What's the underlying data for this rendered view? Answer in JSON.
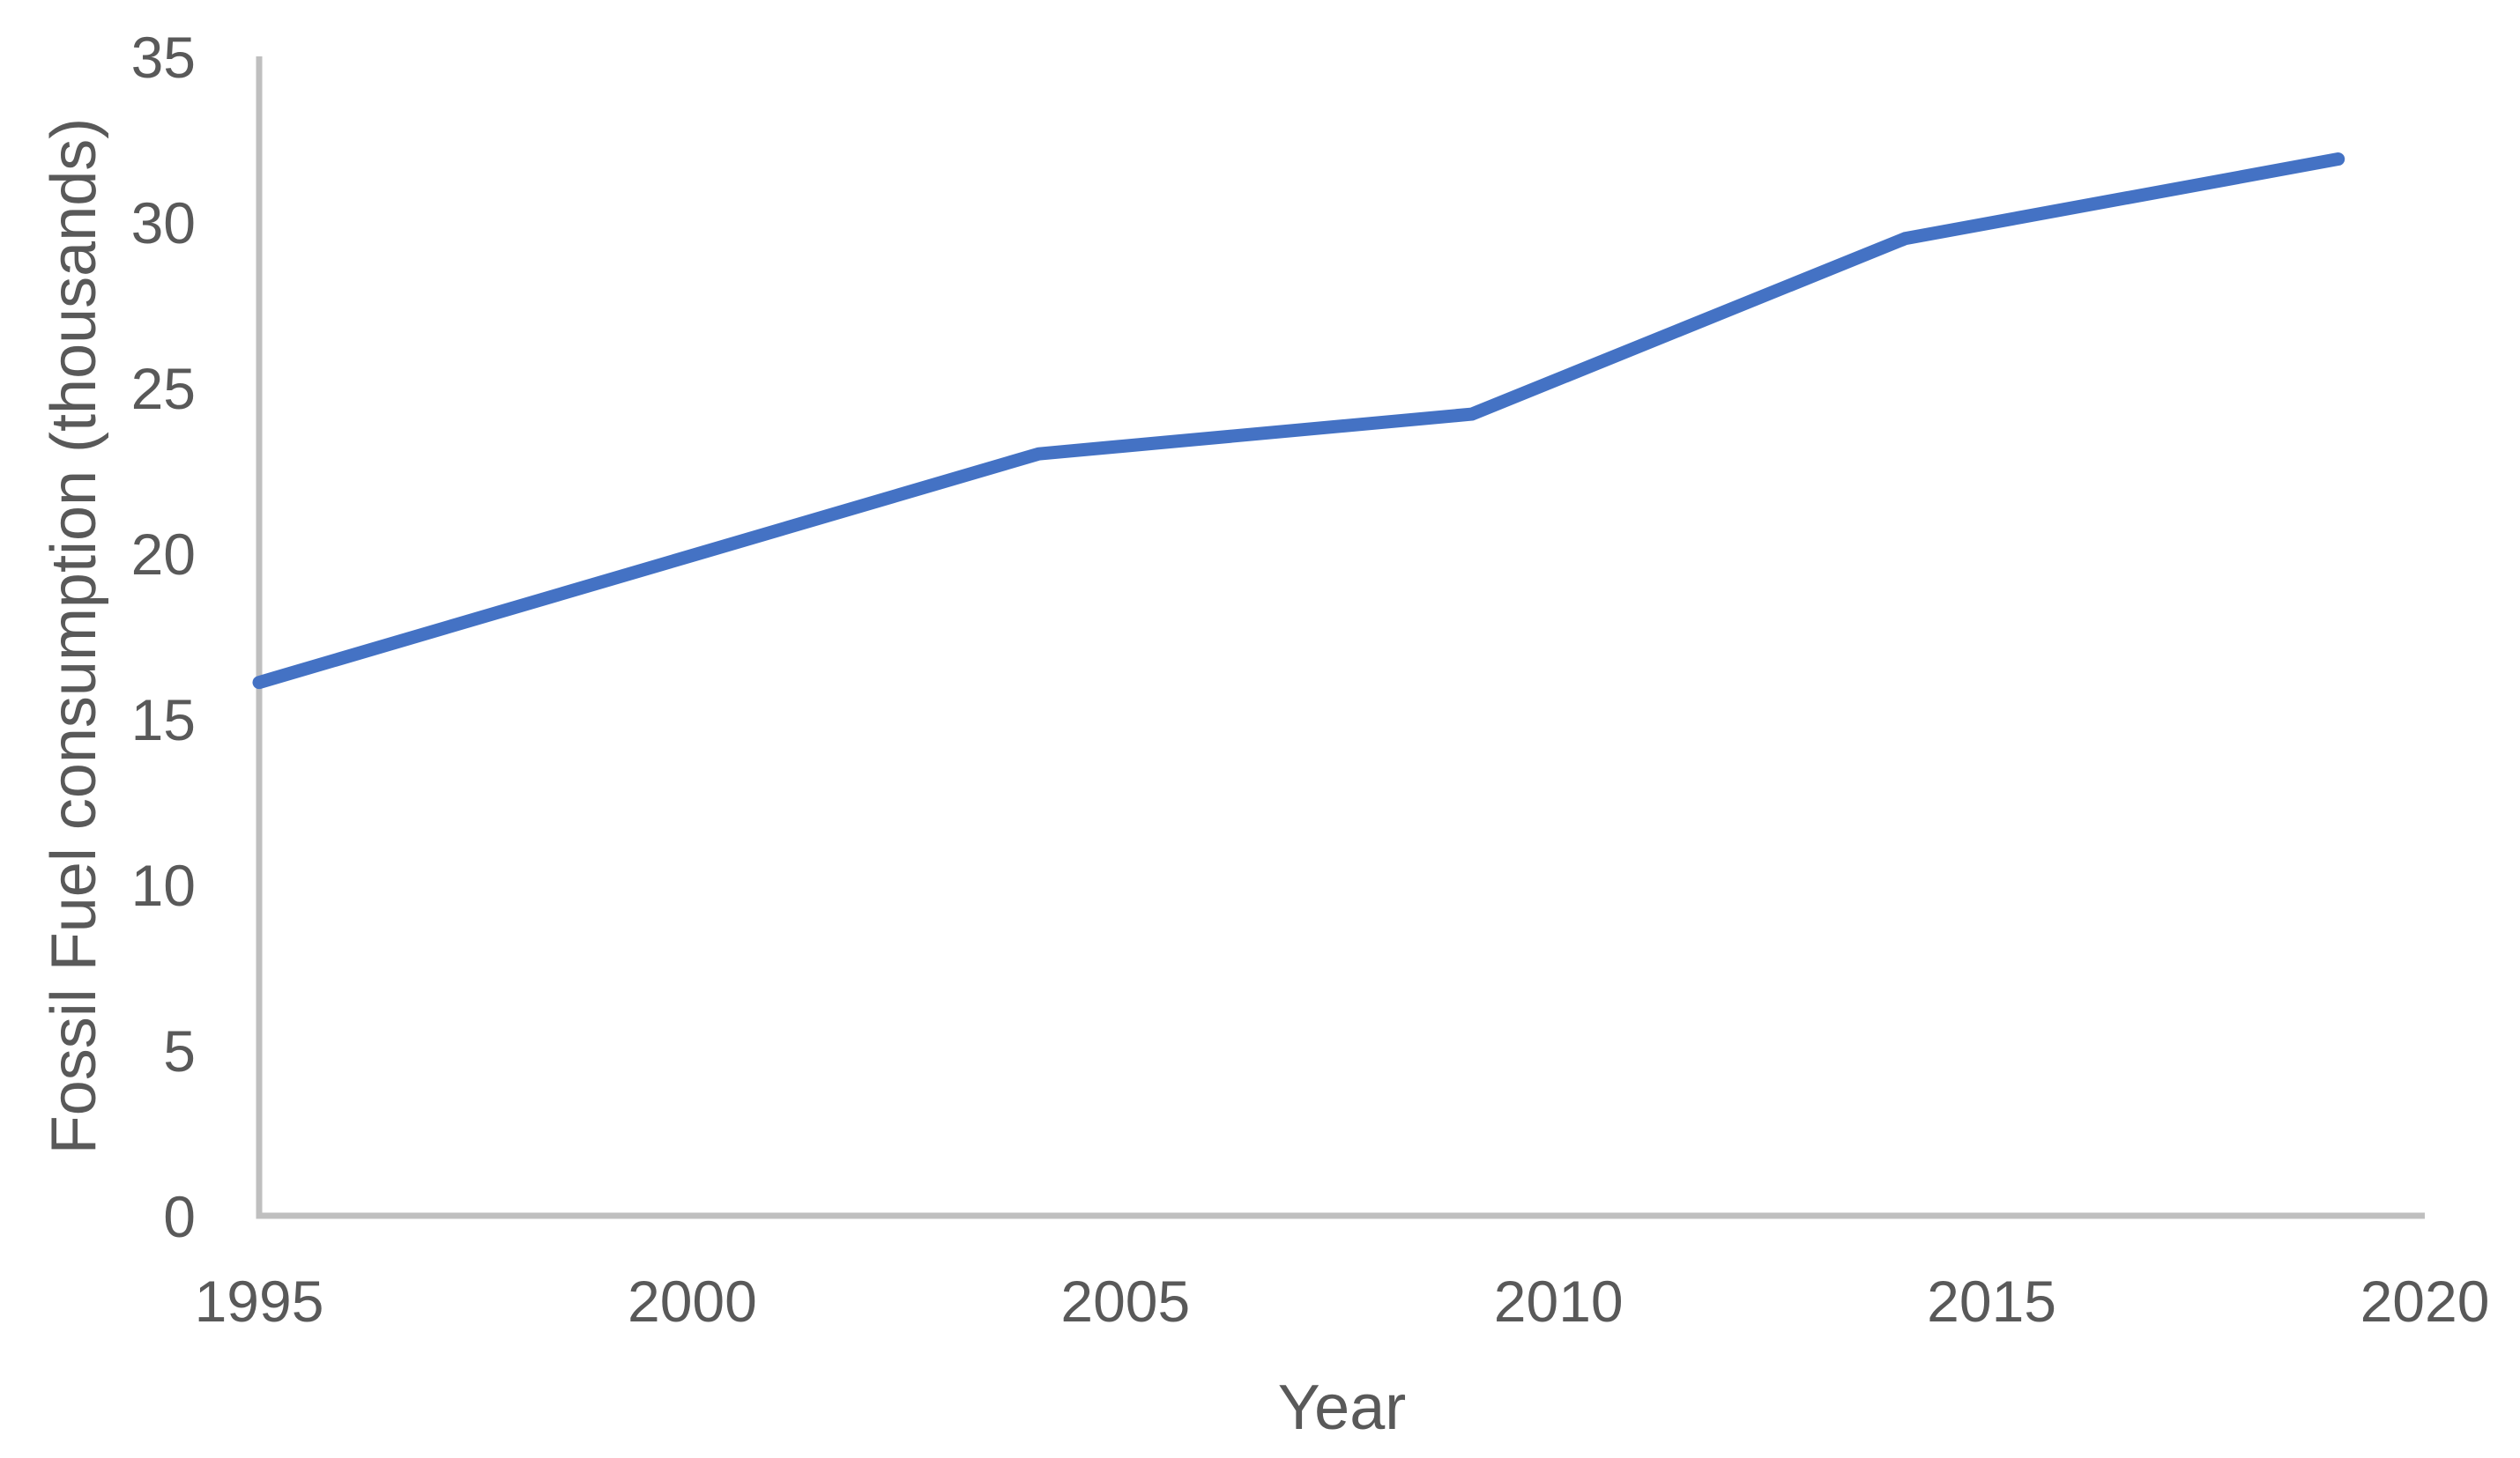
{
  "chart_data": {
    "type": "line",
    "title": "",
    "xlabel": "Year",
    "ylabel": "Fossil Fuel consumption (thousands)",
    "x": [
      1995,
      2004,
      2009,
      2014,
      2019
    ],
    "series": [
      {
        "name": "Fossil Fuel consumption",
        "values": [
          16.1,
          23.0,
          24.2,
          29.5,
          31.9
        ]
      }
    ],
    "xlim": [
      1995,
      2020
    ],
    "ylim": [
      0,
      35
    ],
    "x_ticks": [
      1995,
      2000,
      2005,
      2010,
      2015,
      2020
    ],
    "y_ticks": [
      0,
      5,
      10,
      15,
      20,
      25,
      30,
      35
    ],
    "grid": false,
    "legend": "none",
    "colors": {
      "line": "#4472C4",
      "axis": "#BFBFBF",
      "text": "#595959",
      "background": "#FFFFFF"
    }
  }
}
